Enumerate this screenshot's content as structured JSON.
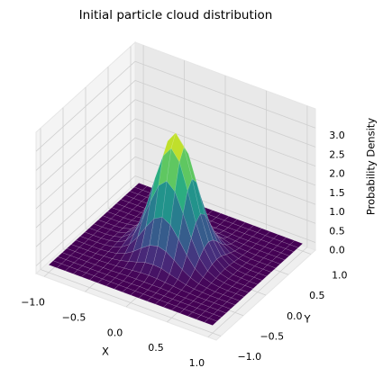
{
  "chart_data": {
    "type": "surface",
    "title": "Initial particle cloud distribution",
    "xlabel": "X",
    "ylabel": "Y",
    "zlabel": "Probability Density",
    "colormap": "viridis",
    "grid": true,
    "x": [
      -1,
      -0.9,
      -0.8,
      -0.7,
      -0.6,
      -0.5,
      -0.4,
      -0.3,
      -0.2,
      -0.1,
      0,
      0.1,
      0.2,
      0.3,
      0.4,
      0.5,
      0.6,
      0.7,
      0.8,
      0.9,
      1
    ],
    "y": [
      -1,
      -0.9,
      -0.8,
      -0.7,
      -0.6,
      -0.5,
      -0.4,
      -0.3,
      -0.2,
      -0.1,
      0,
      0.1,
      0.2,
      0.3,
      0.4,
      0.5,
      0.6,
      0.7,
      0.8,
      0.9,
      1
    ],
    "z": [
      [
        0,
        0,
        0,
        0,
        0,
        0,
        0,
        0,
        0,
        0,
        0,
        0,
        0,
        0,
        0,
        0,
        0,
        0,
        0,
        0,
        0
      ],
      [
        0,
        0,
        0,
        0,
        0,
        0,
        0,
        0,
        0,
        0,
        0,
        0,
        0,
        0,
        0,
        0,
        0,
        0,
        0,
        0,
        0
      ],
      [
        0,
        0,
        0,
        0,
        0,
        0,
        0,
        0,
        0,
        0,
        0.01,
        0,
        0,
        0,
        0,
        0,
        0,
        0,
        0,
        0,
        0
      ],
      [
        0,
        0,
        0,
        0,
        0,
        0,
        0,
        0.01,
        0.02,
        0.02,
        0.02,
        0.02,
        0.02,
        0.01,
        0,
        0,
        0,
        0,
        0,
        0,
        0
      ],
      [
        0,
        0,
        0,
        0,
        0,
        0.01,
        0.02,
        0.04,
        0.06,
        0.08,
        0.09,
        0.08,
        0.06,
        0.04,
        0.02,
        0.01,
        0,
        0,
        0,
        0,
        0
      ],
      [
        0,
        0,
        0,
        0,
        0.01,
        0.02,
        0.05,
        0.11,
        0.17,
        0.24,
        0.26,
        0.24,
        0.17,
        0.11,
        0.05,
        0.02,
        0.01,
        0,
        0,
        0,
        0
      ],
      [
        0,
        0,
        0,
        0,
        0.02,
        0.05,
        0.13,
        0.26,
        0.43,
        0.58,
        0.64,
        0.58,
        0.43,
        0.26,
        0.13,
        0.05,
        0.02,
        0,
        0,
        0,
        0
      ],
      [
        0,
        0,
        0,
        0.01,
        0.04,
        0.11,
        0.26,
        0.53,
        0.87,
        1.17,
        1.29,
        1.17,
        0.87,
        0.53,
        0.26,
        0.11,
        0.04,
        0.01,
        0,
        0,
        0
      ],
      [
        0,
        0,
        0,
        0.02,
        0.06,
        0.17,
        0.43,
        0.87,
        1.43,
        1.93,
        2.13,
        1.93,
        1.43,
        0.87,
        0.43,
        0.17,
        0.06,
        0.02,
        0,
        0,
        0
      ],
      [
        0,
        0,
        0,
        0.02,
        0.08,
        0.24,
        0.58,
        1.17,
        1.93,
        2.6,
        2.88,
        2.6,
        1.93,
        1.17,
        0.58,
        0.24,
        0.08,
        0.02,
        0,
        0,
        0
      ],
      [
        0,
        0,
        0.01,
        0.02,
        0.09,
        0.26,
        0.64,
        1.29,
        2.13,
        2.88,
        3.18,
        2.88,
        2.13,
        1.29,
        0.64,
        0.26,
        0.09,
        0.02,
        0.01,
        0,
        0
      ],
      [
        0,
        0,
        0,
        0.02,
        0.08,
        0.24,
        0.58,
        1.17,
        1.93,
        2.6,
        2.88,
        2.6,
        1.93,
        1.17,
        0.58,
        0.24,
        0.08,
        0.02,
        0,
        0,
        0
      ],
      [
        0,
        0,
        0,
        0.02,
        0.06,
        0.17,
        0.43,
        0.87,
        1.43,
        1.93,
        2.13,
        1.93,
        1.43,
        0.87,
        0.43,
        0.17,
        0.06,
        0.02,
        0,
        0,
        0
      ],
      [
        0,
        0,
        0,
        0.01,
        0.04,
        0.11,
        0.26,
        0.53,
        0.87,
        1.17,
        1.29,
        1.17,
        0.87,
        0.53,
        0.26,
        0.11,
        0.04,
        0.01,
        0,
        0,
        0
      ],
      [
        0,
        0,
        0,
        0,
        0.02,
        0.05,
        0.13,
        0.26,
        0.43,
        0.58,
        0.64,
        0.58,
        0.43,
        0.26,
        0.13,
        0.05,
        0.02,
        0,
        0,
        0,
        0
      ],
      [
        0,
        0,
        0,
        0,
        0.01,
        0.02,
        0.05,
        0.11,
        0.17,
        0.24,
        0.26,
        0.24,
        0.17,
        0.11,
        0.05,
        0.02,
        0.01,
        0,
        0,
        0,
        0
      ],
      [
        0,
        0,
        0,
        0,
        0,
        0.01,
        0.02,
        0.04,
        0.06,
        0.08,
        0.09,
        0.08,
        0.06,
        0.04,
        0.02,
        0.01,
        0,
        0,
        0,
        0,
        0
      ],
      [
        0,
        0,
        0,
        0,
        0,
        0,
        0,
        0.01,
        0.02,
        0.02,
        0.02,
        0.02,
        0.02,
        0.01,
        0,
        0,
        0,
        0,
        0,
        0,
        0
      ],
      [
        0,
        0,
        0,
        0,
        0,
        0,
        0,
        0,
        0,
        0,
        0.01,
        0,
        0,
        0,
        0,
        0,
        0,
        0,
        0,
        0,
        0
      ],
      [
        0,
        0,
        0,
        0,
        0,
        0,
        0,
        0,
        0,
        0,
        0,
        0,
        0,
        0,
        0,
        0,
        0,
        0,
        0,
        0,
        0
      ],
      [
        0,
        0,
        0,
        0,
        0,
        0,
        0,
        0,
        0,
        0,
        0,
        0,
        0,
        0,
        0,
        0,
        0,
        0,
        0,
        0,
        0
      ]
    ],
    "xlim": [
      -1.1,
      1.1
    ],
    "ylim": [
      -1.1,
      1.1
    ],
    "zlim": [
      -0.2,
      3.5
    ],
    "xticks": [
      {
        "value": -1,
        "label": "−1.0"
      },
      {
        "value": -0.5,
        "label": "−0.5"
      },
      {
        "value": 0,
        "label": "0.0"
      },
      {
        "value": 0.5,
        "label": "0.5"
      },
      {
        "value": 1,
        "label": "1.0"
      }
    ],
    "yticks": [
      {
        "value": -1,
        "label": "−1.0"
      },
      {
        "value": -0.5,
        "label": "−0.5"
      },
      {
        "value": 0,
        "label": "0.0"
      },
      {
        "value": 0.5,
        "label": "0.5"
      },
      {
        "value": 1,
        "label": "1.0"
      }
    ],
    "zticks": [
      {
        "value": 0,
        "label": "0.0"
      },
      {
        "value": 0.5,
        "label": "0.5"
      },
      {
        "value": 1,
        "label": "1.0"
      },
      {
        "value": 1.5,
        "label": "1.5"
      },
      {
        "value": 2,
        "label": "2.0"
      },
      {
        "value": 2.5,
        "label": "2.5"
      },
      {
        "value": 3,
        "label": "3.0"
      }
    ]
  }
}
